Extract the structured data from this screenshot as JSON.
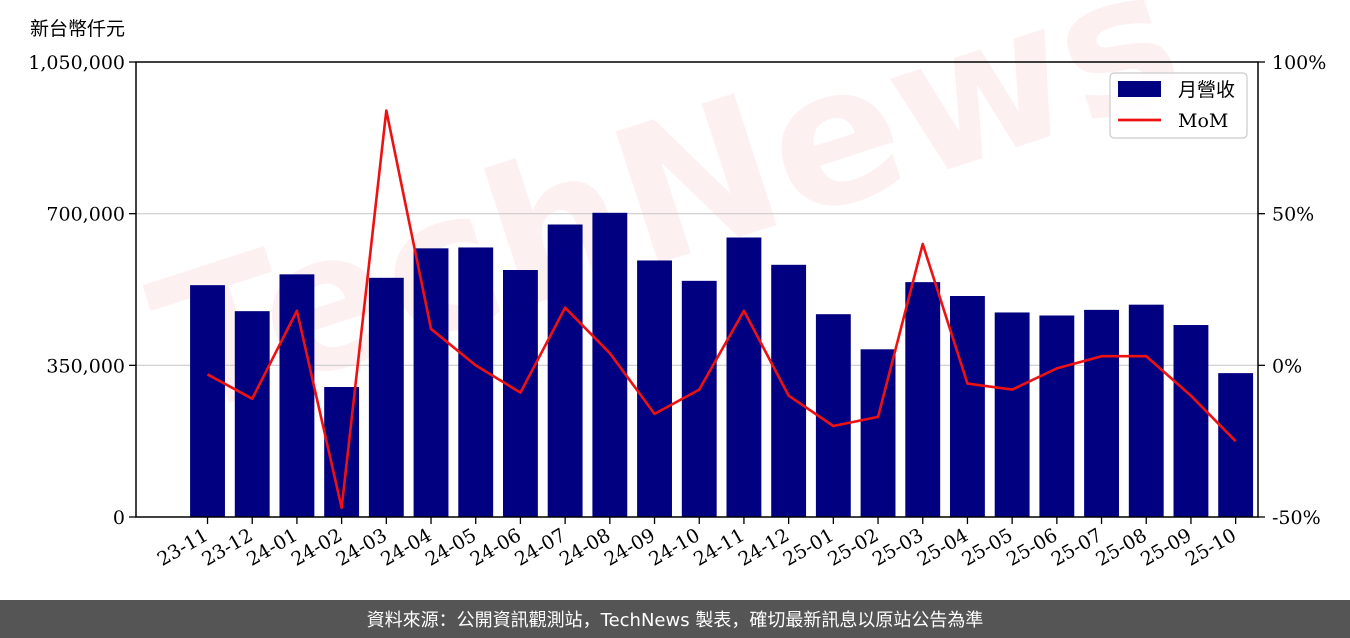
{
  "unit_label": "新台幣仟元",
  "footer_text": "資料來源：公開資訊觀測站，TechNews 製表，確切最新訊息以原站公告為準",
  "watermark_text": "TechNews",
  "colors": {
    "bar": "#000080",
    "line": "#ee1111",
    "grid": "#cccccc",
    "footer_bg": "#555555"
  },
  "chart_data": {
    "type": "bar",
    "categories": [
      "23-11",
      "23-12",
      "24-01",
      "24-02",
      "24-03",
      "24-04",
      "24-05",
      "24-06",
      "24-07",
      "24-08",
      "24-09",
      "24-10",
      "24-11",
      "24-12",
      "25-01",
      "25-02",
      "25-03",
      "25-04",
      "25-05",
      "25-06",
      "25-07",
      "25-08",
      "25-09",
      "25-10"
    ],
    "series": [
      {
        "name": "月營收",
        "axis": "left",
        "type": "bar",
        "values": [
          535000,
          475000,
          560000,
          300000,
          552000,
          620000,
          622000,
          570000,
          675000,
          702000,
          592000,
          545000,
          645000,
          582000,
          468000,
          387000,
          542000,
          510000,
          472000,
          465000,
          478000,
          490000,
          443000,
          332000
        ]
      },
      {
        "name": "MoM",
        "axis": "right",
        "type": "line",
        "values": [
          -3,
          -11,
          18,
          -47,
          84,
          12,
          0,
          -9,
          19,
          4,
          -16,
          -8,
          18,
          -10,
          -20,
          -17,
          40,
          -6,
          -8,
          -1,
          3,
          3,
          -10,
          -25
        ]
      }
    ],
    "y_left": {
      "range": [
        0,
        1050000
      ],
      "ticks": [
        "0",
        "350,000",
        "700,000",
        "1,050,000"
      ],
      "tick_values": [
        0,
        350000,
        700000,
        1050000
      ]
    },
    "y_right": {
      "range": [
        -50,
        100
      ],
      "ticks": [
        "-50%",
        "0%",
        "50%",
        "100%"
      ],
      "tick_values": [
        -50,
        0,
        50,
        100
      ]
    },
    "grid": true,
    "legend_position": "top-right"
  }
}
